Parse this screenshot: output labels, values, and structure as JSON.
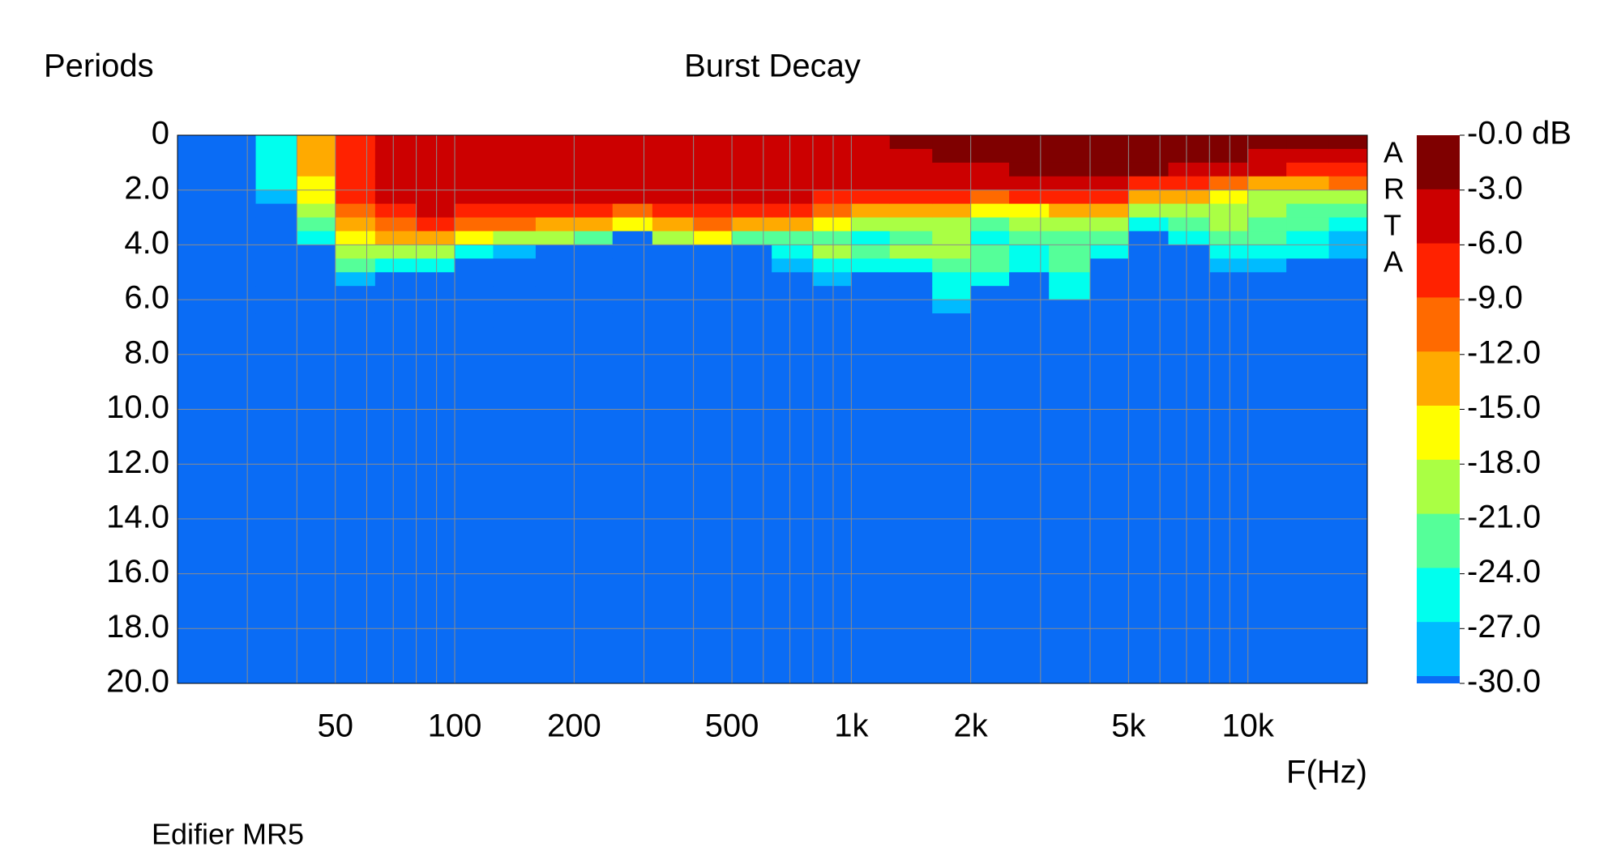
{
  "chart_data": {
    "type": "heatmap",
    "title": "Burst Decay",
    "y_label": "Periods",
    "x_label": "F(Hz)",
    "footnote": "Edifier MR5",
    "watermark": [
      "A",
      "R",
      "T",
      "A"
    ],
    "xscale": "log",
    "xlim": [
      20,
      20000
    ],
    "xticks": [
      50,
      100,
      200,
      500,
      {
        "value": 1000,
        "label": "1k"
      },
      {
        "value": 2000,
        "label": "2k"
      },
      {
        "value": 5000,
        "label": "5k"
      },
      {
        "value": 10000,
        "label": "10k"
      }
    ],
    "xgrid": [
      30,
      40,
      50,
      60,
      70,
      80,
      90,
      100,
      200,
      300,
      400,
      500,
      600,
      700,
      800,
      900,
      1000,
      2000,
      3000,
      4000,
      5000,
      6000,
      7000,
      8000,
      9000,
      10000
    ],
    "ylim": [
      0,
      20
    ],
    "yticks": [
      0,
      {
        "value": 2,
        "label": "2.0"
      },
      {
        "value": 4,
        "label": "4.0"
      },
      {
        "value": 6,
        "label": "6.0"
      },
      {
        "value": 8,
        "label": "8.0"
      },
      {
        "value": 10,
        "label": "10.0"
      },
      {
        "value": 12,
        "label": "12.0"
      },
      {
        "value": 14,
        "label": "14.0"
      },
      {
        "value": 16,
        "label": "16.0"
      },
      {
        "value": 18,
        "label": "18.0"
      },
      {
        "value": 20,
        "label": "20.0"
      }
    ],
    "grid": true,
    "x_edges": [
      20,
      25,
      31.5,
      40,
      50,
      63,
      80,
      100,
      125,
      160,
      200,
      250,
      315,
      400,
      500,
      630,
      800,
      1000,
      1250,
      1600,
      2000,
      2500,
      3150,
      4000,
      5000,
      6300,
      8000,
      10000,
      12500,
      16000,
      20000
    ],
    "y_edges": [
      0,
      0.5,
      1,
      1.5,
      2,
      2.5,
      3,
      3.5,
      4,
      4.5,
      5,
      5.5,
      6,
      6.5,
      7
    ],
    "z": [
      [
        -35,
        -35,
        -35,
        -35,
        -35,
        -35,
        -35,
        -35,
        -35,
        -35,
        -35,
        -35,
        -35,
        -35
      ],
      [
        -35,
        -35,
        -35,
        -35,
        -35,
        -35,
        -35,
        -35,
        -35,
        -35,
        -35,
        -35,
        -35,
        -35
      ],
      [
        -26,
        -26,
        -26,
        -27,
        -29,
        -35,
        -35,
        -35,
        -35,
        -35,
        -35,
        -35,
        -35,
        -35
      ],
      [
        -14,
        -14,
        -15,
        -16,
        -18,
        -21,
        -23,
        -26,
        -35,
        -35,
        -35,
        -35,
        -35,
        -35
      ],
      [
        -7,
        -7,
        -8,
        -8,
        -9,
        -11,
        -14,
        -17,
        -20,
        -24,
        -28,
        -35,
        -35,
        -35
      ],
      [
        -4,
        -4,
        -4,
        -5,
        -5,
        -7,
        -10,
        -14,
        -19,
        -26,
        -35,
        -35,
        -35,
        -35
      ],
      [
        -4,
        -4,
        -4,
        -4,
        -5,
        -6,
        -9,
        -13,
        -19,
        -27,
        -35,
        -35,
        -35,
        -35
      ],
      [
        -4,
        -4,
        -4,
        -4,
        -5,
        -7,
        -11,
        -17,
        -26,
        -35,
        -35,
        -35,
        -35,
        -35
      ],
      [
        -4,
        -4,
        -4,
        -4,
        -5,
        -8,
        -12,
        -19,
        -28,
        -35,
        -35,
        -35,
        -35,
        -35
      ],
      [
        -4,
        -4,
        -4,
        -4,
        -5,
        -8,
        -13,
        -20,
        -35,
        -35,
        -35,
        -35,
        -35,
        -35
      ],
      [
        -4,
        -4,
        -4,
        -4,
        -6,
        -9,
        -14,
        -22,
        -35,
        -35,
        -35,
        -35,
        -35,
        -35
      ],
      [
        -4,
        -4,
        -4,
        -4,
        -6,
        -10,
        -16,
        -35,
        -35,
        -35,
        -35,
        -35,
        -35,
        -35
      ],
      [
        -4,
        -4,
        -4,
        -4,
        -5,
        -8,
        -13,
        -20,
        -35,
        -35,
        -35,
        -35,
        -35,
        -35
      ],
      [
        -4,
        -4,
        -4,
        -4,
        -5,
        -7,
        -12,
        -18,
        -35,
        -35,
        -35,
        -35,
        -35,
        -35
      ],
      [
        -4,
        -4,
        -4,
        -4,
        -5,
        -8,
        -14,
        -22,
        -35,
        -35,
        -35,
        -35,
        -35,
        -35
      ],
      [
        -4,
        -4,
        -4,
        -5,
        -6,
        -9,
        -15,
        -22,
        -25,
        -28,
        -35,
        -35,
        -35,
        -35
      ],
      [
        -4,
        -4,
        -4,
        -5,
        -7,
        -11,
        -17,
        -23,
        -20,
        -25,
        -28,
        -35,
        -35,
        -35
      ],
      [
        -4,
        -4,
        -4,
        -5,
        -8,
        -13,
        -20,
        -25,
        -22,
        -26,
        -35,
        -35,
        -35,
        -35
      ],
      [
        -3,
        -4,
        -4,
        -5,
        -8,
        -14,
        -19,
        -22,
        -21,
        -25,
        -35,
        -35,
        -35,
        -35
      ],
      [
        -2,
        -2,
        -4,
        -5,
        -9,
        -15,
        -19,
        -21,
        -21,
        -23,
        -25,
        -27,
        -28,
        -35
      ],
      [
        -2,
        -2,
        -4,
        -6,
        -10,
        -17,
        -22,
        -25,
        -22,
        -23,
        -26,
        -35,
        -35,
        -35
      ],
      [
        -1,
        -2,
        -3,
        -5,
        -9,
        -16,
        -21,
        -24,
        -25,
        -26,
        -35,
        -35,
        -35,
        -35
      ],
      [
        -1,
        -1,
        -2,
        -4,
        -8,
        -14,
        -20,
        -22,
        -22,
        -24,
        -26,
        -27,
        -35,
        -35
      ],
      [
        -1,
        -2,
        -3,
        -5,
        -9,
        -15,
        -20,
        -23,
        -26,
        -35,
        -35,
        -35,
        -35,
        -35
      ],
      [
        -1,
        -1,
        -3,
        -7,
        -13,
        -20,
        -26,
        -35,
        -35,
        -35,
        -35,
        -35,
        -35,
        -35
      ],
      [
        -2,
        -2,
        -4,
        -8,
        -14,
        -19,
        -22,
        -25,
        -35,
        -35,
        -35,
        -35,
        -35,
        -35
      ],
      [
        -2,
        -2,
        -5,
        -11,
        -18,
        -20,
        -21,
        -24,
        -26,
        -28,
        -35,
        -35,
        -35,
        -35
      ],
      [
        -3,
        -4,
        -6,
        -14,
        -20,
        -21,
        -22,
        -24,
        -26,
        -28,
        -35,
        -35,
        -35,
        -35
      ],
      [
        -3,
        -4,
        -7,
        -14,
        -21,
        -22,
        -23,
        -25,
        -27,
        -35,
        -35,
        -35,
        -35,
        -35
      ],
      [
        -3,
        -5,
        -8,
        -12,
        -20,
        -23,
        -26,
        -28,
        -29,
        -35,
        -35,
        -35,
        -35,
        -35
      ]
    ],
    "colorbar": {
      "levels": [
        {
          "value": 0,
          "label": "-0.0 dB"
        },
        {
          "value": -3,
          "label": "-3.0"
        },
        {
          "value": -6,
          "label": "-6.0"
        },
        {
          "value": -9,
          "label": "-9.0"
        },
        {
          "value": -12,
          "label": "-12.0"
        },
        {
          "value": -15,
          "label": "-15.0"
        },
        {
          "value": -18,
          "label": "-18.0"
        },
        {
          "value": -21,
          "label": "-21.0"
        },
        {
          "value": -24,
          "label": "-24.0"
        },
        {
          "value": -27,
          "label": "-27.0"
        },
        {
          "value": -30,
          "label": "-30.0"
        }
      ],
      "colors": [
        "#7f0000",
        "#cc0000",
        "#ff2200",
        "#ff6a00",
        "#ffaa00",
        "#ffff00",
        "#aaff44",
        "#55ff99",
        "#00ffee",
        "#00bbff",
        "#0a6cf5"
      ]
    }
  }
}
